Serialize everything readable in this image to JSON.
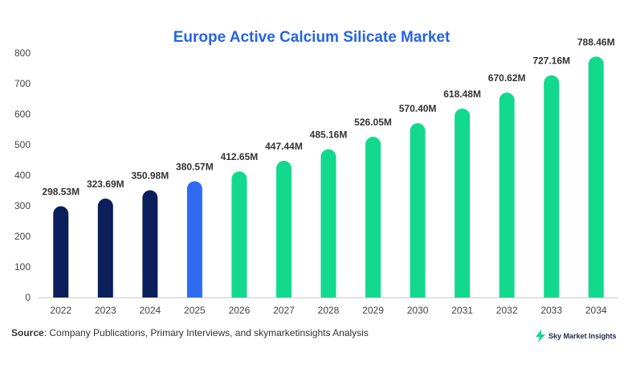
{
  "chart_data": {
    "type": "bar",
    "title": "Europe Active Calcium Silicate Market",
    "categories": [
      "2022",
      "2023",
      "2024",
      "2025",
      "2026",
      "2027",
      "2028",
      "2029",
      "2030",
      "2031",
      "2032",
      "2033",
      "2034"
    ],
    "values": [
      298.53,
      323.69,
      350.98,
      380.57,
      412.65,
      447.44,
      485.16,
      526.05,
      570.4,
      618.48,
      670.62,
      727.16,
      788.46
    ],
    "data_labels": [
      "298.53M",
      "323.69M",
      "350.98M",
      "380.57M",
      "412.65M",
      "447.44M",
      "485.16M",
      "526.05M",
      "570.40M",
      "618.48M",
      "670.62M",
      "727.16M",
      "788.46M"
    ],
    "bar_colors": [
      "#0b1f5c",
      "#0b1f5c",
      "#0b1f5c",
      "#2f6bf0",
      "#12d98e",
      "#12d98e",
      "#12d98e",
      "#12d98e",
      "#12d98e",
      "#12d98e",
      "#12d98e",
      "#12d98e",
      "#12d98e"
    ],
    "yticks": [
      0,
      100,
      200,
      300,
      400,
      500,
      600,
      700,
      800
    ],
    "ylim": [
      0,
      800
    ],
    "xlabel": "",
    "ylabel": "",
    "grid": false,
    "legend": "none"
  },
  "source": {
    "label": "Source",
    "text": ": Company Publications, Primary Interviews, and skymarketinsights Analysis"
  },
  "logo": {
    "text": "Sky Market Insights",
    "icon": "lightning-bolt-icon",
    "color": "#12d98e"
  }
}
